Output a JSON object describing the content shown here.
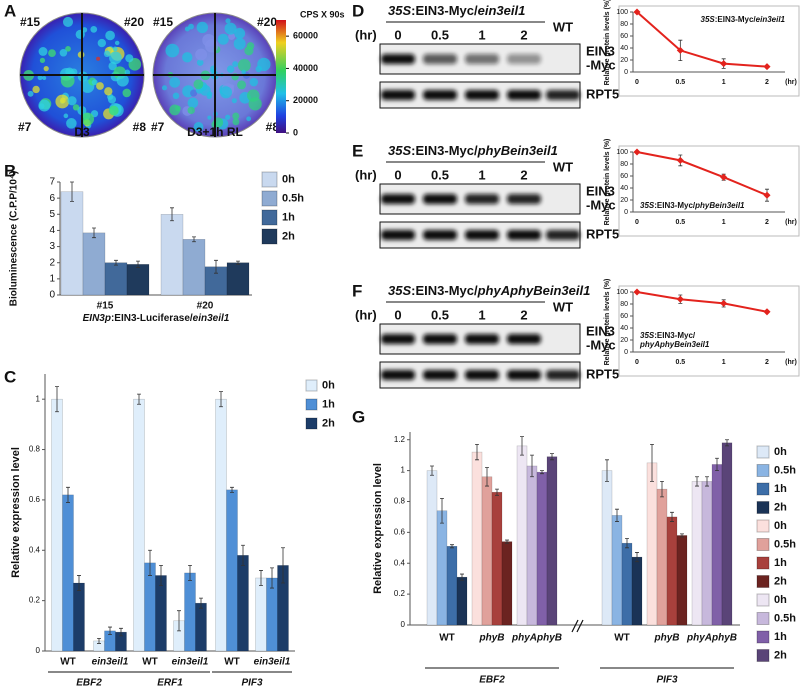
{
  "panel_labels": [
    "A",
    "B",
    "C",
    "D",
    "E",
    "F",
    "G"
  ],
  "panel_a": {
    "plates": [
      {
        "wells": [
          "#15",
          "#20",
          "#7",
          "#8"
        ],
        "caption": "D3"
      },
      {
        "wells": [
          "#15",
          "#20",
          "#7",
          "#8"
        ],
        "caption": "D3+1h RL"
      }
    ],
    "colorbar": {
      "title": "CPS X 90s",
      "lim": [
        0,
        70000
      ],
      "ticks": [
        0,
        20000,
        40000,
        60000
      ]
    }
  },
  "blots": [
    {
      "header": [
        "35S",
        ":EIN3-Myc/",
        "ein3eil1"
      ],
      "time_unit": "(hr)",
      "lanes": [
        "0",
        "0.5",
        "1",
        "2",
        "WT"
      ],
      "rows": [
        [
          "EIN3",
          "-Myc"
        ],
        [
          "RPT5"
        ]
      ]
    },
    {
      "header": [
        "35S",
        ":EIN3-Myc/",
        "phyBein3eil1"
      ],
      "time_unit": "(hr)",
      "lanes": [
        "0",
        "0.5",
        "1",
        "2",
        "WT"
      ],
      "rows": [
        [
          "EIN3",
          "-Myc"
        ],
        [
          "RPT5"
        ]
      ]
    },
    {
      "header": [
        "35S",
        ":EIN3-Myc/",
        "phyAphyBein3eil1"
      ],
      "time_unit": "(hr)",
      "lanes": [
        "0",
        "0.5",
        "1",
        "2",
        "WT"
      ],
      "rows": [
        [
          "EIN3",
          "-Myc"
        ],
        [
          "RPT5"
        ]
      ]
    }
  ],
  "chart_data": [
    {
      "type": "bar",
      "y_label": "Bioluminescence (C.P.P/10⁴)",
      "x_label": [
        "EIN3p",
        ":EIN3-Luciferase/",
        "ein3eil1"
      ],
      "categories": [
        "#15",
        "#20"
      ],
      "ylim": [
        0,
        7
      ],
      "yticks": [
        0,
        1,
        2,
        3,
        4,
        5,
        6,
        7
      ],
      "series": [
        {
          "name": "0h",
          "color": "#c9d9ef",
          "values": [
            6.4,
            5.0
          ],
          "errors": [
            0.6,
            0.4
          ]
        },
        {
          "name": "0.5h",
          "color": "#8fabd2",
          "values": [
            3.85,
            3.45
          ],
          "errors": [
            0.3,
            0.15
          ]
        },
        {
          "name": "1h",
          "color": "#41699a",
          "values": [
            2.0,
            1.75
          ],
          "errors": [
            0.15,
            0.4
          ]
        },
        {
          "name": "2h",
          "color": "#1f3a5c",
          "values": [
            1.9,
            2.0
          ],
          "errors": [
            0.2,
            0.1
          ]
        }
      ]
    },
    {
      "type": "bar",
      "y_label": "Relative expression level",
      "categories": [
        "WT",
        "ein3eil1",
        "WT",
        "ein3eil1",
        "WT",
        "ein3eil1"
      ],
      "groups": [
        "EBF2",
        "ERF1",
        "PIF3"
      ],
      "ylim": [
        0,
        1.1
      ],
      "yticks": [
        0,
        0.2,
        0.4,
        0.6,
        0.8,
        1
      ],
      "series": [
        {
          "name": "0h",
          "color": "#dfeefb",
          "values": [
            1.0,
            0.04,
            1.0,
            0.12,
            1.0,
            0.29
          ],
          "errors": [
            0.05,
            0.01,
            0.02,
            0.04,
            0.03,
            0.03
          ]
        },
        {
          "name": "1h",
          "color": "#4f8fd6",
          "values": [
            0.62,
            0.08,
            0.35,
            0.31,
            0.64,
            0.29
          ],
          "errors": [
            0.03,
            0.015,
            0.05,
            0.03,
            0.01,
            0.04
          ]
        },
        {
          "name": "2h",
          "color": "#1c3c68",
          "values": [
            0.27,
            0.075,
            0.3,
            0.19,
            0.38,
            0.34
          ],
          "errors": [
            0.03,
            0.015,
            0.04,
            0.02,
            0.04,
            0.07
          ]
        }
      ]
    },
    {
      "type": "line",
      "y_label": "Relative protein levels (%)",
      "categories": [
        "0",
        "0.5",
        "1",
        "2"
      ],
      "x_unit": "(hr)",
      "annotation": [
        [
          "35S",
          ":EIN3-Myc/",
          "ein3eil1"
        ]
      ],
      "ylim": [
        0,
        100
      ],
      "yticks": [
        0,
        20,
        40,
        60,
        80,
        100
      ],
      "series": [
        {
          "color": "#e3231d",
          "values": [
            100,
            36,
            14,
            9
          ],
          "errors": [
            0,
            17,
            8,
            1
          ]
        }
      ]
    },
    {
      "type": "line",
      "y_label": "Relative protein levels (%)",
      "categories": [
        "0",
        "0.5",
        "1",
        "2"
      ],
      "x_unit": "(hr)",
      "annotation": [
        [
          "35S",
          ":EIN3-Myc/",
          "phyBein3eil1"
        ]
      ],
      "ylim": [
        0,
        100
      ],
      "yticks": [
        0,
        20,
        40,
        60,
        80,
        100
      ],
      "series": [
        {
          "color": "#e3231d",
          "values": [
            100,
            86,
            58,
            28
          ],
          "errors": [
            0,
            9,
            5,
            10
          ]
        }
      ]
    },
    {
      "type": "line",
      "y_label": "Relative protein levels (%)",
      "categories": [
        "0",
        "0.5",
        "1",
        "2"
      ],
      "x_unit": "(hr)",
      "annotation": [
        [
          "35S",
          ":EIN3-Myc/"
        ],
        [
          "phyAphyBein3eil1"
        ]
      ],
      "ylim": [
        0,
        100
      ],
      "yticks": [
        0,
        20,
        40,
        60,
        80,
        100
      ],
      "series": [
        {
          "color": "#e3231d",
          "values": [
            100,
            88,
            81,
            67
          ],
          "errors": [
            0,
            7,
            6,
            2
          ]
        }
      ]
    },
    {
      "type": "bar",
      "y_label": "Relative expression level",
      "categories": [
        "WT",
        "phyB",
        "phyAphyB",
        "WT",
        "phyB",
        "phyAphyB"
      ],
      "groups": [
        "EBF2",
        "PIF3"
      ],
      "ylim": [
        0,
        1.25
      ],
      "yticks": [
        0,
        0.2,
        0.4,
        0.6,
        0.8,
        1,
        1.2
      ],
      "series": [
        {
          "name": "0h",
          "color": "#dde9f7",
          "values": [
            1.0,
            null,
            null,
            1.0,
            null,
            null
          ],
          "errors": [
            0.03,
            null,
            null,
            0.07,
            null,
            null
          ]
        },
        {
          "name": "0.5h",
          "color": "#8ab4e3",
          "values": [
            0.74,
            null,
            null,
            0.71,
            null,
            null
          ],
          "errors": [
            0.08,
            null,
            null,
            0.04,
            null,
            null
          ]
        },
        {
          "name": "1h",
          "color": "#3d6ea8",
          "values": [
            0.51,
            null,
            null,
            0.53,
            null,
            null
          ],
          "errors": [
            0.01,
            null,
            null,
            0.03,
            null,
            null
          ]
        },
        {
          "name": "2h",
          "color": "#1a3356",
          "values": [
            0.31,
            null,
            null,
            0.44,
            null,
            null
          ],
          "errors": [
            0.02,
            null,
            null,
            0.03,
            null,
            null
          ]
        },
        {
          "name": "0h",
          "color": "#fbe0dd",
          "values": [
            null,
            1.12,
            null,
            null,
            1.05,
            null
          ],
          "errors": [
            null,
            0.05,
            null,
            null,
            0.12,
            null
          ]
        },
        {
          "name": "0.5h",
          "color": "#e0a19b",
          "values": [
            null,
            0.96,
            null,
            null,
            0.88,
            null
          ],
          "errors": [
            null,
            0.06,
            null,
            null,
            0.05,
            null
          ]
        },
        {
          "name": "1h",
          "color": "#a8403c",
          "values": [
            null,
            0.86,
            null,
            null,
            0.7,
            null
          ],
          "errors": [
            null,
            0.02,
            null,
            null,
            0.03,
            null
          ]
        },
        {
          "name": "2h",
          "color": "#6b2320",
          "values": [
            null,
            0.54,
            null,
            null,
            0.58,
            null
          ],
          "errors": [
            null,
            0.01,
            null,
            null,
            0.01,
            null
          ]
        },
        {
          "name": "0h",
          "color": "#ede6f3",
          "values": [
            null,
            null,
            1.16,
            null,
            null,
            0.93
          ],
          "errors": [
            null,
            null,
            0.06,
            null,
            null,
            0.03
          ]
        },
        {
          "name": "0.5h",
          "color": "#c7b8dc",
          "values": [
            null,
            null,
            1.03,
            null,
            null,
            0.93
          ],
          "errors": [
            null,
            null,
            0.07,
            null,
            null,
            0.03
          ]
        },
        {
          "name": "1h",
          "color": "#8060a8",
          "values": [
            null,
            null,
            0.99,
            null,
            null,
            1.04
          ],
          "errors": [
            null,
            null,
            0.01,
            null,
            null,
            0.04
          ]
        },
        {
          "name": "2h",
          "color": "#5a4478",
          "values": [
            null,
            null,
            1.09,
            null,
            null,
            1.18
          ],
          "errors": [
            null,
            null,
            0.02,
            null,
            null,
            0.02
          ]
        }
      ]
    }
  ]
}
